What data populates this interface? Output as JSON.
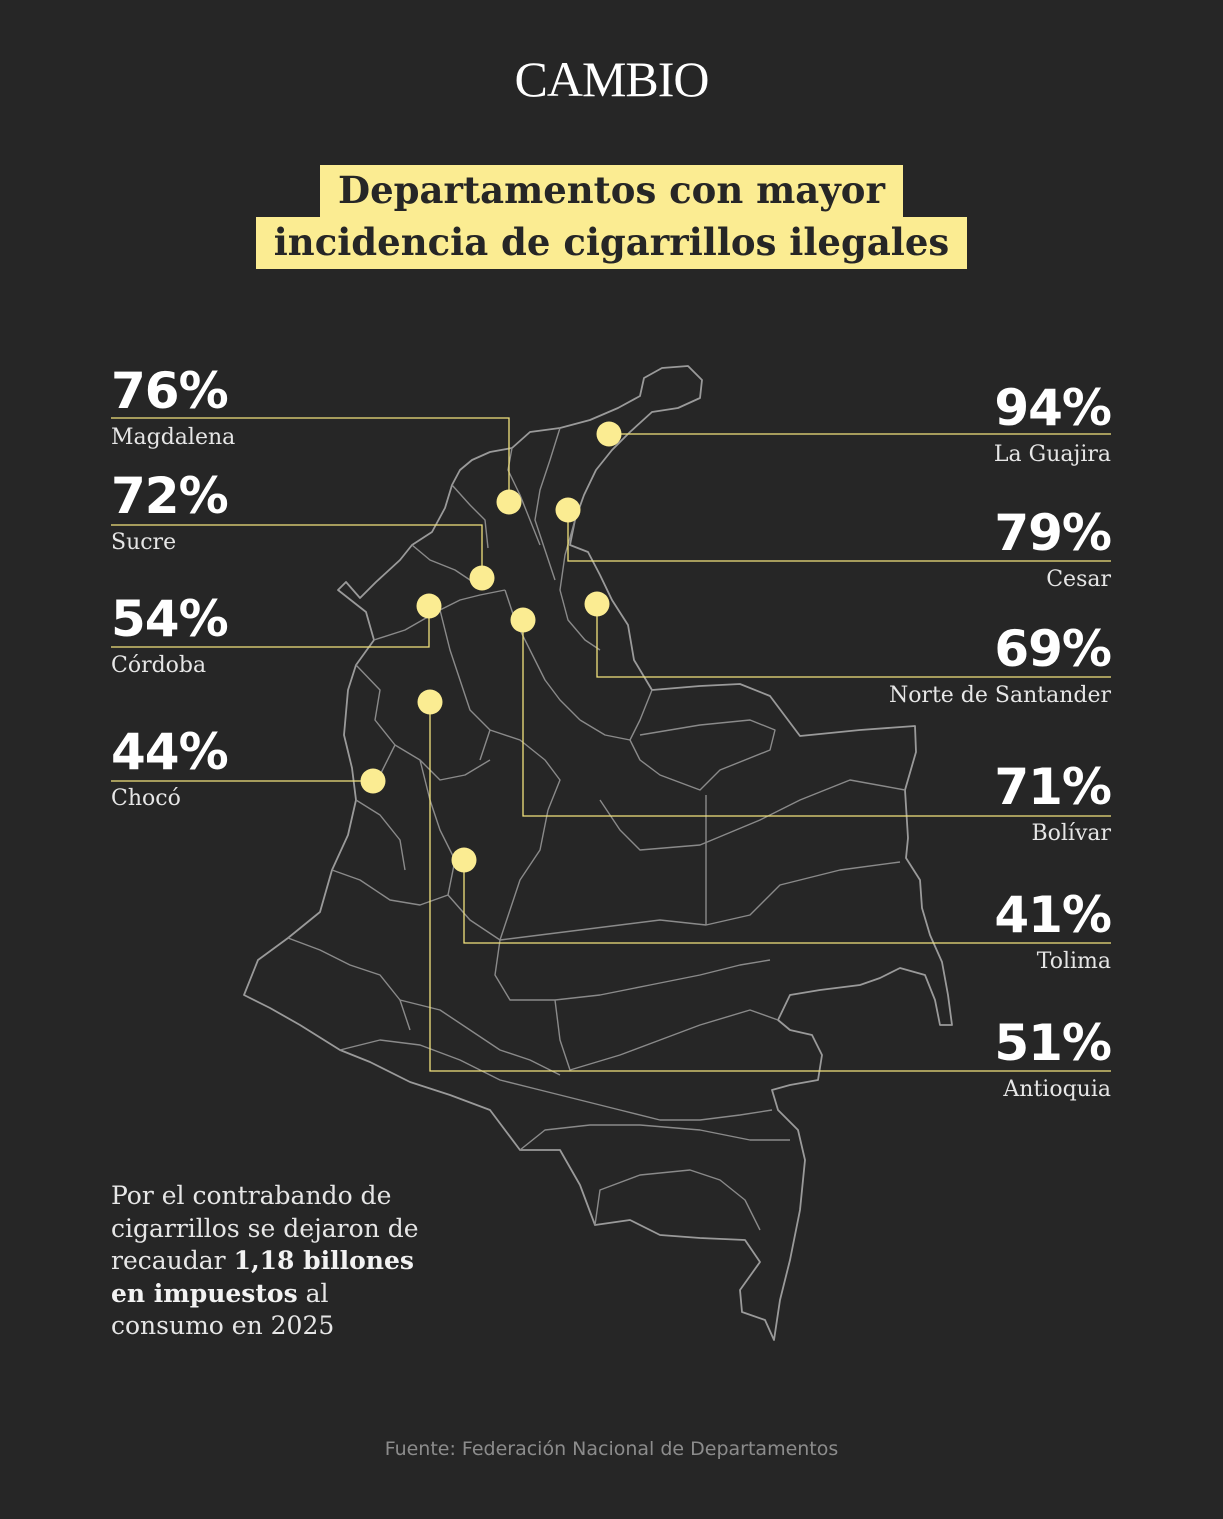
{
  "header": {
    "logo_text": "CAMBIO"
  },
  "title": {
    "line1": "Departamentos con mayor",
    "line2": "incidencia de cigarrillos ilegales"
  },
  "colors": {
    "background": "#262626",
    "accent": "#fbec92",
    "map_border": "#9a9a9a",
    "text": "#e6e6e6"
  },
  "departments": [
    {
      "name": "Magdalena",
      "value": "76%"
    },
    {
      "name": "Sucre",
      "value": "72%"
    },
    {
      "name": "Córdoba",
      "value": "54%"
    },
    {
      "name": "Chocó",
      "value": "44%"
    },
    {
      "name": "La Guajira",
      "value": "94%"
    },
    {
      "name": "Cesar",
      "value": "79%"
    },
    {
      "name": "Norte de Santander",
      "value": "69%"
    },
    {
      "name": "Bolívar",
      "value": "71%"
    },
    {
      "name": "Tolima",
      "value": "41%"
    },
    {
      "name": "Antioquia",
      "value": "51%"
    }
  ],
  "note": {
    "text_before": "Por el contrabando de cigarrillos se dejaron de recaudar ",
    "text_bold": "1,18 billones en impuestos",
    "text_after": " al consumo en 2025"
  },
  "source": "Fuente: Federación Nacional de Departamentos"
}
